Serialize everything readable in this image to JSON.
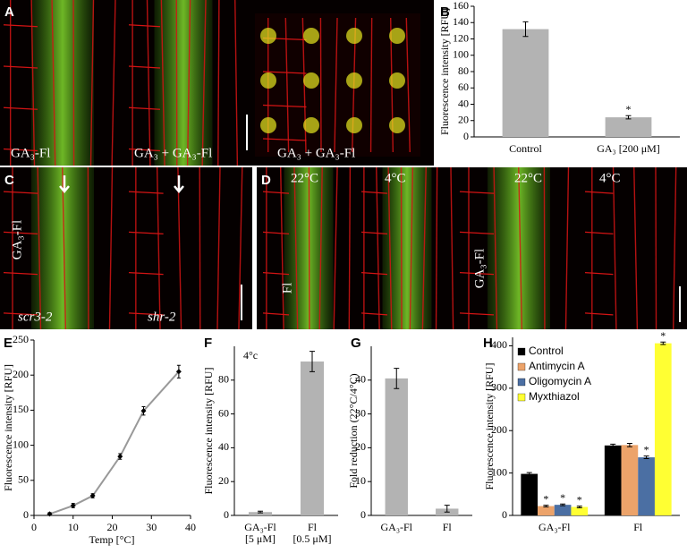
{
  "panels": {
    "A": {
      "label": "A",
      "captions": [
        "GA₃-Fl",
        "GA₃ + GA₃-Fl",
        "GA₃ + GA₃-Fl"
      ]
    },
    "C": {
      "label": "C",
      "side": "GA₃-Fl",
      "captions": [
        "scr3-2",
        "shr-2"
      ]
    },
    "D": {
      "label": "D",
      "temps": [
        "22°C",
        "4°C",
        "22°C",
        "4°C"
      ],
      "side": [
        "Fl",
        "GA₃-Fl"
      ]
    }
  },
  "chart_data": [
    {
      "type": "bar",
      "panel": "B",
      "y_label": "Fluorescence intensity [RFU]",
      "categories": [
        [
          "Control"
        ],
        [
          "GA₃ [200 μM]"
        ]
      ],
      "values": [
        132,
        24
      ],
      "errors": [
        9,
        2
      ],
      "significance": [
        null,
        "*"
      ],
      "color": "#b3b3b3",
      "ylim": [
        0,
        160
      ],
      "yticks": [
        0,
        20,
        40,
        60,
        80,
        100,
        120,
        140,
        160
      ]
    },
    {
      "type": "line",
      "panel": "E",
      "y_label": "Fluorescence intensity [RFU]",
      "x_label": "Temp [°C]",
      "x": [
        4,
        10,
        15,
        22,
        28,
        37
      ],
      "values": [
        2,
        14,
        28,
        84,
        149,
        205
      ],
      "errors": [
        2,
        3,
        3,
        4,
        6,
        9
      ],
      "color": "#999999",
      "xlim": [
        0,
        40
      ],
      "xticks": [
        0,
        10,
        20,
        30,
        40
      ],
      "ylim": [
        0,
        250
      ],
      "yticks": [
        0,
        50,
        100,
        150,
        200,
        250
      ]
    },
    {
      "type": "bar",
      "panel": "F",
      "annotation": "4°c",
      "y_label": "Fluorescence intensity [RFU]",
      "categories": [
        [
          "GA₃-Fl",
          "[5 μM]"
        ],
        [
          "Fl",
          "[0.5 μM]"
        ]
      ],
      "values": [
        2,
        91
      ],
      "errors": [
        0.5,
        6
      ],
      "color": "#b3b3b3",
      "ylim": [
        0,
        100
      ],
      "yticks": [
        0,
        20,
        40,
        60,
        80
      ]
    },
    {
      "type": "bar",
      "panel": "G",
      "y_label": "Fold reduction (22°C/4°C)",
      "categories": [
        [
          "GA₃-Fl"
        ],
        [
          "Fl"
        ]
      ],
      "values": [
        40.5,
        2
      ],
      "errors": [
        3,
        1
      ],
      "color": "#b3b3b3",
      "ylim": [
        0,
        50
      ],
      "yticks": [
        0,
        10,
        20,
        30,
        40
      ]
    },
    {
      "type": "bar",
      "panel": "H",
      "y_label": "Fluorescence intensity [RFU]",
      "categories": [
        [
          "GA₃-Fl"
        ],
        [
          "Fl"
        ]
      ],
      "series": [
        {
          "name": "Control",
          "color": "#000000",
          "values": [
            98,
            165
          ],
          "errors": [
            3,
            3
          ],
          "significance": [
            null,
            null
          ]
        },
        {
          "name": "Antimycin A",
          "color": "#eca36a",
          "values": [
            22,
            166
          ],
          "errors": [
            2,
            4
          ],
          "significance": [
            "*",
            null
          ]
        },
        {
          "name": "Oligomycin A",
          "color": "#4b6fa3",
          "values": [
            25,
            137
          ],
          "errors": [
            2,
            3
          ],
          "significance": [
            "*",
            "*"
          ]
        },
        {
          "name": "Myxthiazol",
          "color": "#ffff33",
          "values": [
            20,
            406
          ],
          "errors": [
            2,
            3
          ],
          "significance": [
            "*",
            "*"
          ]
        }
      ],
      "legend": "top-left",
      "ylim": [
        0,
        420
      ],
      "yticks": [
        0,
        100,
        200,
        300,
        400
      ]
    }
  ]
}
